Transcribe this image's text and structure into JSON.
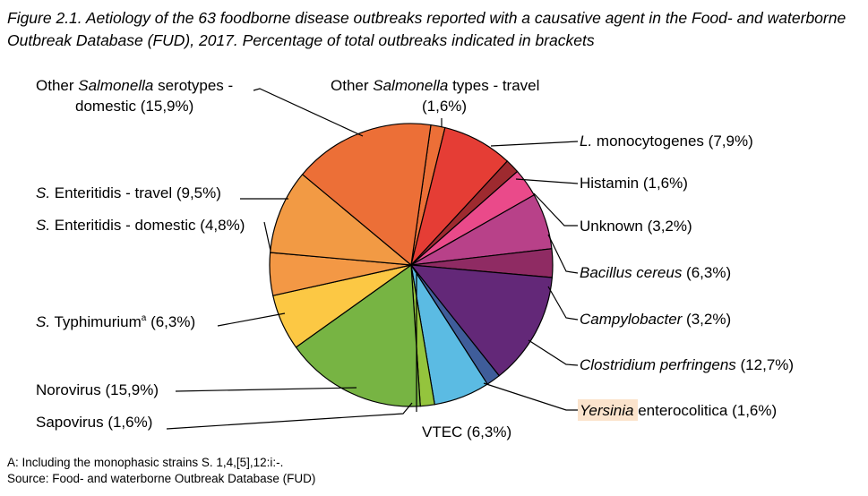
{
  "title": "Figure 2.1. Aetiology of the 63 foodborne disease outbreaks reported with a causative agent in the Food- and waterborne Outbreak Database (FUD), 2017. Percentage of total outbreaks indicated in brackets",
  "footnote_a": "A: Including the monophasic strains S. 1,4,[5],12:i:-.",
  "source": "Source: Food- and waterborne Outbreak Database (FUD)",
  "chart_data": {
    "type": "pie",
    "title": "Figure 2.1. Aetiology of the 63 foodborne disease outbreaks reported with a causative agent in the Food- and waterborne Outbreak Database (FUD), 2017. Percentage of total outbreaks indicated in brackets",
    "slices": [
      {
        "label": "Other Salmonella types - travel",
        "value": 1.6,
        "pct_text": "(1,6%)",
        "color": "#ec6f37"
      },
      {
        "label": "L. monocytogenes",
        "value": 7.9,
        "pct_text": "(7,9%)",
        "color": "#e53d35"
      },
      {
        "label": "Histamin",
        "value": 1.6,
        "pct_text": "(1,6%)",
        "color": "#9e2a2f"
      },
      {
        "label": "Unknown",
        "value": 3.2,
        "pct_text": "(3,2%)",
        "color": "#ea4a8a"
      },
      {
        "label": "Bacillus cereus",
        "value": 6.3,
        "pct_text": "(6,3%)",
        "color": "#b84189"
      },
      {
        "label": "Campylobacter",
        "value": 3.2,
        "pct_text": "(3,2%)",
        "color": "#8f2b63"
      },
      {
        "label": "Clostridium perfringens",
        "value": 12.7,
        "pct_text": "(12,7%)",
        "color": "#632878"
      },
      {
        "label": "Yersinia enterocolitica",
        "value": 1.6,
        "pct_text": "(1,6%)",
        "color": "#3f5d9a"
      },
      {
        "label": "VTEC",
        "value": 6.3,
        "pct_text": "(6,3%)",
        "color": "#5bbbe3"
      },
      {
        "label": "Sapovirus",
        "value": 1.6,
        "pct_text": "(1,6%)",
        "color": "#94c43d"
      },
      {
        "label": "Norovirus",
        "value": 15.9,
        "pct_text": "(15,9%)",
        "color": "#77b443"
      },
      {
        "label": "S. Typhimurium",
        "value": 6.3,
        "pct_text": "(6,3%)",
        "color": "#fcc844"
      },
      {
        "label": "S. Enteritidis - domestic",
        "value": 4.8,
        "pct_text": "(4,8%)",
        "color": "#f39845"
      },
      {
        "label": "S. Enteritidis - travel",
        "value": 9.5,
        "pct_text": "(9,5%)",
        "color": "#f29a44"
      },
      {
        "label": "Other Salmonella serotypes - domestic",
        "value": 15.9,
        "pct_text": "(15,9%)",
        "color": "#ec6f37"
      }
    ]
  },
  "labels": {
    "other_salm_dom_1": "Other ",
    "other_salm_dom_1_it": "Salmonella",
    "other_salm_dom_1_rest": " serotypes -",
    "other_salm_dom_2": "domestic (15,9%)",
    "other_salm_travel_1": "Other ",
    "other_salm_travel_1_it": "Salmonella",
    "other_salm_travel_1_rest": " types - travel",
    "other_salm_travel_2": "(1,6%)",
    "listeria_it": "L.",
    "listeria_rest": " monocytogenes  (7,9%)",
    "histamin": "Histamin (1,6%)",
    "unknown": "Unknown (3,2%)",
    "bacillus_it": "Bacillus cereus",
    "bacillus_rest": " (6,3%)",
    "campy_it": "Campylobacter",
    "campy_rest": " (3,2%)",
    "clost_it": "Clostridium perfringens",
    "clost_rest": " (12,7%)",
    "yersinia_it": "Yersinia",
    "yersinia_rest": " enterocolitica (1,6%)",
    "vtec": "VTEC  (6,3%)",
    "sapovirus": "Sapovirus (1,6%)",
    "norovirus": "Norovirus (15,9%)",
    "typhi_it": "S.",
    "typhi_rest": " Typhimurium",
    "typhi_sup": "a",
    "typhi_pct": " (6,3%)",
    "ent_dom_it": "S.",
    "ent_dom_rest": " Enteritidis - domestic (4,8%)",
    "ent_trav_it": "S.",
    "ent_trav_rest": " Enteritidis - travel (9,5%)"
  }
}
